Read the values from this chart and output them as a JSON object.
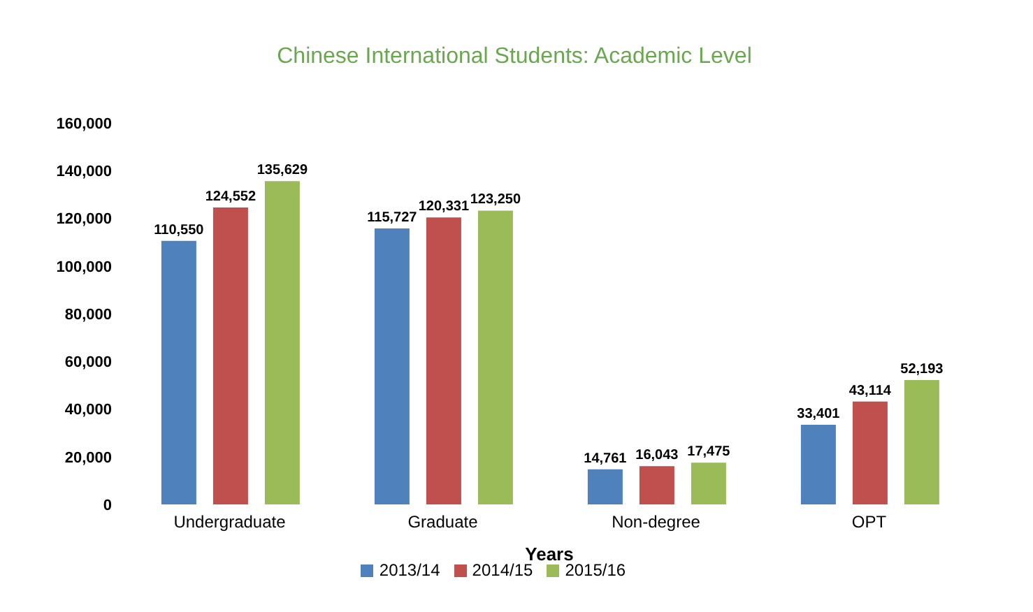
{
  "chart_data": {
    "type": "bar",
    "title": "Chinese International Students: Academic Level",
    "xlabel": "Years",
    "categories": [
      "Undergraduate",
      "Graduate",
      "Non-degree",
      "OPT"
    ],
    "series": [
      {
        "name": "2013/14",
        "color": "#4f81bd",
        "values": [
          110550,
          115727,
          14761,
          33401
        ],
        "value_labels": [
          "110,550",
          "115,727",
          "14,761",
          "33,401"
        ]
      },
      {
        "name": "2014/15",
        "color": "#c0504d",
        "values": [
          124552,
          120331,
          16043,
          43114
        ],
        "value_labels": [
          "124,552",
          "120,331",
          "16,043",
          "43,114"
        ]
      },
      {
        "name": "2015/16",
        "color": "#9bbb59",
        "values": [
          135629,
          123250,
          17475,
          52193
        ],
        "value_labels": [
          "135,629",
          "123,250",
          "17,475",
          "52,193"
        ]
      }
    ],
    "ylim": [
      0,
      160000
    ],
    "yticks": [
      {
        "value": 0,
        "label": "0"
      },
      {
        "value": 20000,
        "label": "20,000"
      },
      {
        "value": 40000,
        "label": "40,000"
      },
      {
        "value": 60000,
        "label": "60,000"
      },
      {
        "value": 80000,
        "label": "80,000"
      },
      {
        "value": 100000,
        "label": "100,000"
      },
      {
        "value": 120000,
        "label": "120,000"
      },
      {
        "value": 140000,
        "label": "140,000"
      },
      {
        "value": 160000,
        "label": "160,000"
      }
    ],
    "grid": false,
    "legend": "bottom"
  }
}
